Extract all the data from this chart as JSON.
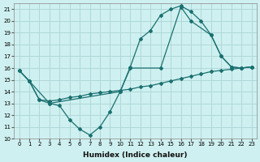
{
  "xlabel": "Humidex (Indice chaleur)",
  "xlim": [
    -0.5,
    23.5
  ],
  "ylim": [
    10,
    21.5
  ],
  "yticks": [
    10,
    11,
    12,
    13,
    14,
    15,
    16,
    17,
    18,
    19,
    20,
    21
  ],
  "xticks": [
    0,
    1,
    2,
    3,
    4,
    5,
    6,
    7,
    8,
    9,
    10,
    11,
    12,
    13,
    14,
    15,
    16,
    17,
    18,
    19,
    20,
    21,
    22,
    23
  ],
  "bg_color": "#cff0f0",
  "grid_color": "#aed8d8",
  "line_color": "#1a7070",
  "lines": [
    {
      "x": [
        0,
        1,
        2,
        3,
        4,
        5,
        6,
        7,
        8,
        9,
        10,
        11,
        12,
        13,
        14,
        15,
        16,
        17,
        18,
        19,
        20,
        21,
        22,
        23
      ],
      "y": [
        15.8,
        14.9,
        13.3,
        13.0,
        12.8,
        11.6,
        10.8,
        10.3,
        11.0,
        12.3,
        14.0,
        16.1,
        18.5,
        19.2,
        20.5,
        21.0,
        21.3,
        20.8,
        20.0,
        18.8,
        17.0,
        16.1,
        16.0,
        16.1
      ]
    },
    {
      "x": [
        0,
        1,
        2,
        3,
        4,
        5,
        6,
        7,
        8,
        9,
        10,
        11,
        12,
        13,
        14,
        15,
        16,
        17,
        18,
        19,
        20,
        21,
        22,
        23
      ],
      "y": [
        15.8,
        14.9,
        13.3,
        13.2,
        13.3,
        13.5,
        13.6,
        13.8,
        13.9,
        14.0,
        14.1,
        14.2,
        14.4,
        14.5,
        14.7,
        14.9,
        15.1,
        15.3,
        15.5,
        15.7,
        15.8,
        15.9,
        16.0,
        16.1
      ]
    },
    {
      "x": [
        0,
        1,
        3,
        10,
        11,
        14,
        16,
        17,
        19,
        20,
        21,
        22,
        23
      ],
      "y": [
        15.8,
        14.9,
        13.0,
        14.0,
        16.0,
        16.0,
        21.2,
        20.0,
        18.8,
        17.0,
        16.1,
        16.0,
        16.1
      ]
    }
  ]
}
